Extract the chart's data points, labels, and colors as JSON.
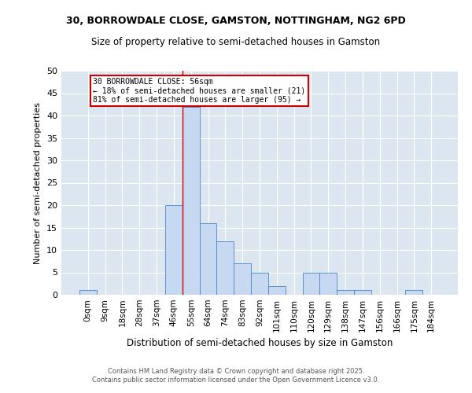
{
  "title_line1": "30, BORROWDALE CLOSE, GAMSTON, NOTTINGHAM, NG2 6PD",
  "title_line2": "Size of property relative to semi-detached houses in Gamston",
  "xlabel": "Distribution of semi-detached houses by size in Gamston",
  "ylabel": "Number of semi-detached properties",
  "bin_labels": [
    "0sqm",
    "9sqm",
    "18sqm",
    "28sqm",
    "37sqm",
    "46sqm",
    "55sqm",
    "64sqm",
    "74sqm",
    "83sqm",
    "92sqm",
    "101sqm",
    "110sqm",
    "120sqm",
    "129sqm",
    "138sqm",
    "147sqm",
    "156sqm",
    "166sqm",
    "175sqm",
    "184sqm"
  ],
  "bar_heights": [
    1,
    0,
    0,
    0,
    0,
    20,
    42,
    16,
    12,
    7,
    5,
    2,
    0,
    5,
    5,
    1,
    1,
    0,
    0,
    1,
    0
  ],
  "bar_color": "#c6d9f0",
  "bar_edge_color": "#4a86c8",
  "property_line_x": 6,
  "annotation_title": "30 BORROWDALE CLOSE: 56sqm",
  "annotation_line1": "← 18% of semi-detached houses are smaller (21)",
  "annotation_line2": "81% of semi-detached houses are larger (95) →",
  "annotation_box_color": "#cc0000",
  "vline_color": "#cc0000",
  "ylim": [
    0,
    50
  ],
  "yticks": [
    0,
    5,
    10,
    15,
    20,
    25,
    30,
    35,
    40,
    45,
    50
  ],
  "bg_color": "#dce6f0",
  "footer_line1": "Contains HM Land Registry data © Crown copyright and database right 2025.",
  "footer_line2": "Contains public sector information licensed under the Open Government Licence v3.0."
}
